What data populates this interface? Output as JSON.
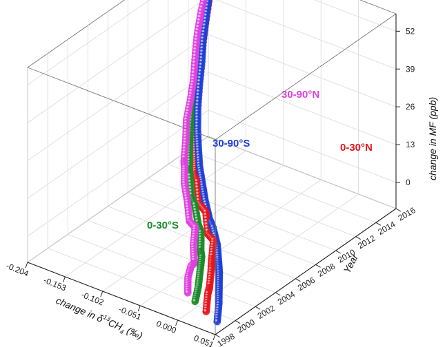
{
  "chart_data": {
    "type": "scatter3d",
    "axes": {
      "x": {
        "label_prefix": "change in δ",
        "label_sup": "13",
        "label_mid": "CH",
        "label_sub": "4",
        "label_suffix": " (‰)",
        "ticks": [
          "-0.204",
          "-0.153",
          "-0.102",
          "-0.051",
          "0.000",
          "0.051"
        ],
        "range": [
          -0.204,
          0.051
        ]
      },
      "y": {
        "label": "Year",
        "ticks": [
          "1998",
          "2000",
          "2002",
          "2004",
          "2006",
          "2008",
          "2010",
          "2012",
          "2014",
          "2016"
        ],
        "range": [
          1998,
          2016
        ]
      },
      "z": {
        "label": "change in MF (ppb)",
        "ticks": [
          "0",
          "13",
          "26",
          "39",
          "52"
        ],
        "range": [
          -9,
          58
        ]
      }
    },
    "colors": {
      "0-30°N": "#e8141b",
      "30-90°N": "#e040e0",
      "0-30°S": "#1a8a2a",
      "30-90°S": "#1f3fd6"
    },
    "series": [
      {
        "name": "30-90°N",
        "color": "#e040e0",
        "x": [
          0.0,
          -0.012,
          -0.02,
          -0.028,
          -0.04,
          -0.05,
          -0.07,
          -0.085,
          -0.1,
          -0.112,
          -0.125,
          -0.135,
          -0.145,
          -0.152,
          -0.16,
          -0.17,
          -0.178,
          -0.185,
          -0.19,
          -0.195,
          -0.2
        ],
        "year": [
          1999.0,
          1999.9,
          2000.8,
          2001.7,
          2002.5,
          2003.4,
          2004.3,
          2005.2,
          2006.0,
          2006.9,
          2007.8,
          2008.7,
          2009.5,
          2010.4,
          2011.3,
          2012.2,
          2013.0,
          2013.9,
          2014.8,
          2015.3,
          2015.9
        ],
        "z": [
          -2,
          0,
          1,
          -1,
          2,
          5,
          3,
          6,
          9,
          11,
          10,
          14,
          18,
          22,
          26,
          31,
          36,
          41,
          46,
          50,
          54
        ]
      },
      {
        "name": "0-30°N",
        "color": "#e8141b",
        "x": [
          0.025,
          0.015,
          0.005,
          -0.005,
          -0.015,
          -0.025,
          -0.045,
          -0.06,
          -0.08,
          -0.095,
          -0.11,
          -0.122,
          -0.134,
          -0.145,
          -0.155,
          -0.165,
          -0.172,
          -0.18,
          -0.187,
          -0.193,
          -0.198
        ],
        "year": [
          1999.0,
          1999.9,
          2000.8,
          2001.7,
          2002.5,
          2003.4,
          2004.3,
          2005.2,
          2006.0,
          2006.9,
          2007.8,
          2008.7,
          2009.5,
          2010.4,
          2011.3,
          2012.2,
          2013.0,
          2013.9,
          2014.8,
          2015.3,
          2015.9
        ],
        "z": [
          -6,
          -3,
          -4,
          -1,
          0,
          3,
          1,
          5,
          4,
          8,
          7,
          9,
          12,
          15,
          19,
          24,
          30,
          36,
          42,
          47,
          52
        ]
      },
      {
        "name": "0-30°S",
        "color": "#1a8a2a",
        "x": [
          0.01,
          0.002,
          -0.008,
          -0.018,
          -0.03,
          -0.042,
          -0.058,
          -0.075,
          -0.09,
          -0.105,
          -0.118,
          -0.13,
          -0.14,
          -0.15,
          -0.158,
          -0.166,
          -0.174,
          -0.181,
          -0.188,
          -0.194,
          -0.199
        ],
        "year": [
          1999.0,
          1999.9,
          2000.8,
          2001.7,
          2002.5,
          2003.4,
          2004.3,
          2005.2,
          2006.0,
          2006.9,
          2007.8,
          2008.7,
          2009.5,
          2010.4,
          2011.3,
          2012.2,
          2013.0,
          2013.9,
          2014.8,
          2015.3,
          2015.9
        ],
        "z": [
          -4,
          -2,
          0,
          2,
          1,
          4,
          3,
          6,
          5,
          9,
          8,
          11,
          14,
          18,
          22,
          27,
          33,
          39,
          44,
          49,
          53
        ]
      },
      {
        "name": "30-90°S",
        "color": "#1f3fd6",
        "x": [
          0.04,
          0.03,
          0.018,
          0.006,
          -0.006,
          -0.02,
          -0.038,
          -0.055,
          -0.072,
          -0.088,
          -0.104,
          -0.118,
          -0.13,
          -0.142,
          -0.152,
          -0.161,
          -0.17,
          -0.178,
          -0.186,
          -0.192,
          -0.197
        ],
        "year": [
          1999.0,
          1999.9,
          2000.8,
          2001.7,
          2002.5,
          2003.4,
          2004.3,
          2005.2,
          2006.0,
          2006.9,
          2007.8,
          2008.7,
          2009.5,
          2010.4,
          2011.3,
          2012.2,
          2013.0,
          2013.9,
          2014.8,
          2015.3,
          2015.9
        ],
        "z": [
          -8,
          -5,
          -3,
          -1,
          0,
          2,
          4,
          3,
          6,
          8,
          10,
          13,
          16,
          20,
          25,
          30,
          35,
          40,
          45,
          50,
          55
        ]
      }
    ],
    "labels": [
      {
        "text": "30-90°N",
        "color": "#e040e0"
      },
      {
        "text": "0-30°N",
        "color": "#e8141b"
      },
      {
        "text": "30-90°S",
        "color": "#1f3fd6"
      },
      {
        "text": "0-30°S",
        "color": "#1a8a2a"
      }
    ],
    "grid": true
  }
}
